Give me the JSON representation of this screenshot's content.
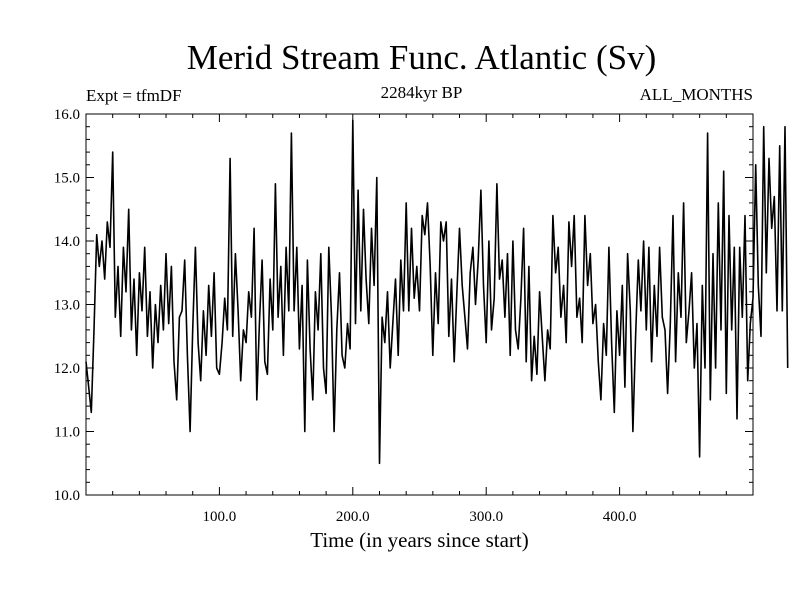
{
  "chart_data": {
    "type": "line",
    "title": "Merid Stream Func. Atlantic (Sv)",
    "subtitle_left": "Expt = tfmDF",
    "subtitle_center": "2284kyr BP",
    "subtitle_right": "ALL_MONTHS",
    "xlabel": "Time (in years since start)",
    "ylabel": "",
    "xlim": [
      0,
      500
    ],
    "ylim": [
      10.0,
      16.0
    ],
    "x_ticks": [
      100,
      200,
      300,
      400
    ],
    "x_tick_labels": [
      "100.0",
      "200.0",
      "300.0",
      "400.0"
    ],
    "y_ticks": [
      10,
      11,
      12,
      13,
      14,
      15,
      16
    ],
    "y_tick_labels": [
      "10.0",
      "11.0",
      "12.0",
      "13.0",
      "14.0",
      "15.0",
      "16.0"
    ],
    "grid": false,
    "series": [
      {
        "name": "Merid Stream Func. Atlantic",
        "x_start": 0,
        "x_step": 2,
        "values": [
          12.1,
          11.7,
          11.3,
          12.6,
          14.1,
          13.6,
          14.0,
          13.4,
          14.3,
          13.9,
          15.4,
          12.8,
          13.6,
          12.5,
          13.9,
          13.2,
          14.5,
          12.6,
          13.4,
          12.2,
          13.5,
          12.9,
          13.9,
          12.5,
          13.2,
          12.0,
          13.0,
          12.4,
          13.3,
          12.6,
          13.8,
          12.7,
          13.6,
          12.1,
          11.5,
          12.8,
          12.9,
          13.7,
          12.2,
          11.0,
          12.6,
          13.9,
          12.4,
          11.8,
          12.9,
          12.2,
          13.3,
          12.5,
          13.5,
          12.0,
          11.9,
          12.4,
          13.1,
          12.6,
          15.3,
          12.5,
          13.8,
          12.9,
          11.8,
          12.6,
          12.4,
          13.2,
          12.8,
          14.2,
          11.5,
          12.7,
          13.7,
          12.1,
          11.9,
          13.4,
          12.6,
          14.9,
          12.8,
          13.6,
          12.2,
          13.9,
          12.9,
          15.7,
          12.9,
          13.9,
          12.3,
          13.3,
          11.0,
          13.7,
          12.3,
          11.5,
          13.2,
          12.6,
          13.8,
          12.0,
          11.6,
          13.9,
          12.8,
          11.0,
          12.6,
          13.5,
          12.2,
          12.0,
          12.7,
          12.3,
          15.9,
          12.7,
          14.8,
          12.9,
          14.5,
          13.4,
          12.7,
          14.2,
          13.3,
          15.0,
          10.5,
          12.8,
          12.4,
          13.2,
          12.0,
          12.7,
          13.4,
          12.2,
          13.7,
          12.9,
          14.6,
          12.9,
          14.2,
          13.1,
          13.6,
          12.9,
          14.4,
          14.1,
          14.6,
          13.6,
          12.2,
          13.5,
          12.7,
          14.3,
          14.0,
          14.3,
          12.5,
          13.4,
          12.1,
          13.2,
          14.2,
          13.3,
          12.8,
          12.3,
          13.5,
          13.9,
          13.0,
          13.7,
          14.8,
          13.3,
          12.4,
          14.0,
          12.6,
          13.1,
          14.9,
          13.4,
          13.7,
          12.8,
          13.8,
          12.2,
          14.0,
          12.6,
          12.3,
          13.1,
          14.2,
          12.1,
          13.6,
          11.8,
          12.5,
          11.9,
          13.2,
          12.5,
          11.8,
          12.6,
          12.3,
          14.4,
          13.5,
          13.9,
          12.8,
          13.3,
          12.4,
          14.3,
          13.6,
          14.4,
          12.8,
          13.1,
          12.4,
          14.4,
          13.3,
          13.8,
          12.7,
          13.0,
          12.1,
          11.5,
          12.7,
          12.2,
          13.9,
          12.4,
          11.3,
          12.9,
          12.2,
          13.3,
          11.7,
          13.8,
          12.9,
          11.0,
          12.5,
          13.7,
          12.9,
          14.0,
          12.6,
          13.9,
          12.1,
          13.3,
          12.5,
          13.9,
          12.8,
          12.6,
          11.6,
          12.7,
          14.4,
          12.1,
          13.5,
          12.8,
          14.6,
          12.4,
          12.9,
          13.5,
          12.0,
          12.7,
          10.6,
          13.3,
          12.0,
          15.7,
          11.5,
          13.8,
          12.0,
          14.6,
          12.6,
          15.1,
          11.6,
          14.4,
          12.6,
          13.9,
          11.2,
          13.9,
          12.8,
          14.4,
          11.8,
          12.7,
          13.1,
          15.2,
          13.3,
          12.5,
          15.8,
          13.5,
          15.3,
          14.2,
          14.7,
          12.9,
          15.5,
          12.9,
          15.8,
          12.0
        ]
      }
    ]
  }
}
